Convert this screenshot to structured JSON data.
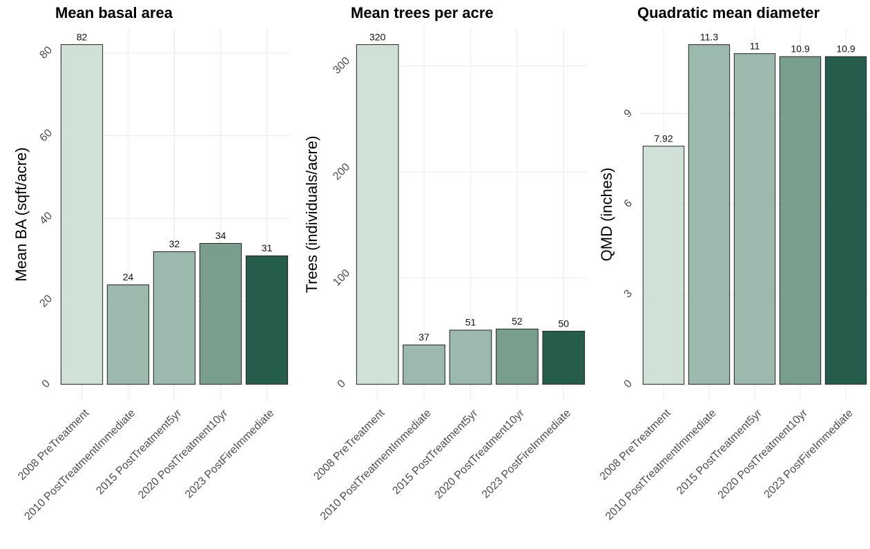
{
  "chart_data": [
    {
      "type": "bar",
      "title": "Mean basal area",
      "y_label": "Mean BA (sqft/acre)",
      "categories": [
        "2008 PreTreatment",
        "2010 PostTreatmentImmediate",
        "2015 PostTreatment5yr",
        "2020 PostTreatment10yr",
        "2023 PostFireImmediate"
      ],
      "values": [
        82,
        24,
        32,
        34,
        31
      ],
      "colors": [
        "#d0e1d8",
        "#9bb9ac",
        "#9bb9ac",
        "#7a9e8e",
        "#265c4c"
      ],
      "ylim": [
        -4.1,
        86.1
      ],
      "yticks": [
        0,
        20,
        40,
        60,
        80
      ],
      "grid": true
    },
    {
      "type": "bar",
      "title": "Mean trees per acre",
      "y_label": "Trees (individuals/acre)",
      "categories": [
        "2008 PreTreatment",
        "2010 PostTreatmentImmediate",
        "2015 PostTreatment5yr",
        "2020 PostTreatment10yr",
        "2023 PostFireImmediate"
      ],
      "values": [
        320,
        37,
        51,
        52,
        50
      ],
      "colors": [
        "#d0e1d8",
        "#9bb9ac",
        "#9bb9ac",
        "#7a9e8e",
        "#265c4c"
      ],
      "ylim": [
        -16,
        336
      ],
      "yticks": [
        0,
        100,
        200,
        300
      ],
      "grid": true
    },
    {
      "type": "bar",
      "title": "Quadratic mean diameter",
      "y_label": "QMD (inches)",
      "categories": [
        "2008 PreTreatment",
        "2010 PostTreatmentImmediate",
        "2015 PostTreatment5yr",
        "2020 PostTreatment10yr",
        "2023 PostFireImmediate"
      ],
      "values": [
        7.92,
        11.3,
        11,
        10.9,
        10.9
      ],
      "colors": [
        "#d0e1d8",
        "#9bb9ac",
        "#9bb9ac",
        "#7a9e8e",
        "#265c4c"
      ],
      "ylim": [
        -0.565,
        11.865
      ],
      "yticks": [
        0,
        3,
        6,
        9
      ],
      "grid": true
    }
  ]
}
